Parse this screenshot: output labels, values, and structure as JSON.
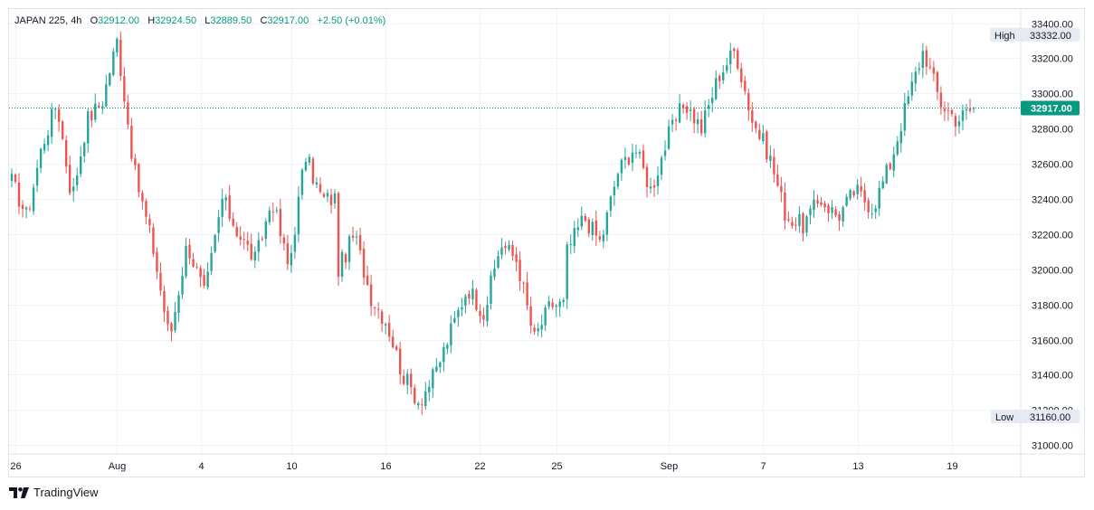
{
  "legend": {
    "symbol": "JAPAN 225",
    "interval": "4h",
    "open_label": "O",
    "open": "32912.00",
    "high_label": "H",
    "high": "32924.50",
    "low_label": "L",
    "low": "32889.50",
    "close_label": "C",
    "close": "32917.00",
    "change": "+2.50 (+0.01%)"
  },
  "price_scale": {
    "ticks": [
      "33400.00",
      "33200.00",
      "33000.00",
      "32800.00",
      "32600.00",
      "32400.00",
      "32200.00",
      "32000.00",
      "31800.00",
      "31600.00",
      "31400.00",
      "31200.00",
      "31000.00"
    ],
    "high_label": "High",
    "high_value": "33332.00",
    "low_label": "Low",
    "low_value": "31160.00",
    "last_value": "32917.00"
  },
  "time_scale": {
    "labels": [
      "26",
      "Aug",
      "4",
      "10",
      "16",
      "22",
      "25",
      "Sep",
      "7",
      "13",
      "19"
    ]
  },
  "branding": {
    "name": "TradingView"
  },
  "colors": {
    "up": "#26a69a",
    "down": "#ef5350",
    "grid": "#f0f3fa",
    "last": "#089981",
    "text": "#131722"
  },
  "chart_data": {
    "type": "candlestick",
    "symbol": "JAPAN 225",
    "interval": "4h",
    "ylim": [
      30950,
      33480
    ],
    "y_ticks": [
      33400,
      33200,
      33000,
      32800,
      32600,
      32400,
      32200,
      32000,
      31800,
      31600,
      31400,
      31200,
      31000
    ],
    "x_tick_labels": [
      "26",
      "Aug",
      "4",
      "10",
      "16",
      "22",
      "25",
      "Sep",
      "7",
      "13",
      "19"
    ],
    "x_tick_index": [
      1,
      29,
      52,
      77,
      103,
      129,
      150,
      181,
      207,
      233,
      259
    ],
    "last_price": 32917,
    "high": 33332,
    "low": 31160,
    "segments": [
      {
        "from": 0,
        "to": 29,
        "path": [
          32500,
          32300,
          32700,
          32950,
          32400,
          32850,
          32950,
          33300
        ]
      },
      {
        "from": 29,
        "to": 58,
        "path": [
          33300,
          32550,
          32150,
          31600,
          32150,
          31850,
          32400
        ]
      },
      {
        "from": 58,
        "to": 90,
        "path": [
          32400,
          32200,
          32050,
          32400,
          32000,
          32650,
          32400,
          32400
        ]
      },
      {
        "from": 90,
        "to": 121,
        "path": [
          32000,
          32200,
          31850,
          31700,
          31400,
          31250,
          31400,
          31650
        ]
      },
      {
        "from": 121,
        "to": 153,
        "path": [
          31650,
          31900,
          31750,
          32150,
          32050,
          31600,
          31800,
          31800
        ]
      },
      {
        "from": 153,
        "to": 190,
        "path": [
          32100,
          32300,
          32150,
          32550,
          32700,
          32450,
          32750,
          32950,
          32800
        ]
      },
      {
        "from": 190,
        "to": 218,
        "path": [
          32800,
          33100,
          33250,
          32850,
          32650,
          32300,
          32250
        ]
      },
      {
        "from": 218,
        "to": 242,
        "path": [
          32250,
          32400,
          32300,
          32450,
          32350,
          32600
        ]
      },
      {
        "from": 242,
        "to": 265,
        "path": [
          32600,
          32950,
          33250,
          32950,
          32850,
          32917
        ]
      }
    ]
  }
}
